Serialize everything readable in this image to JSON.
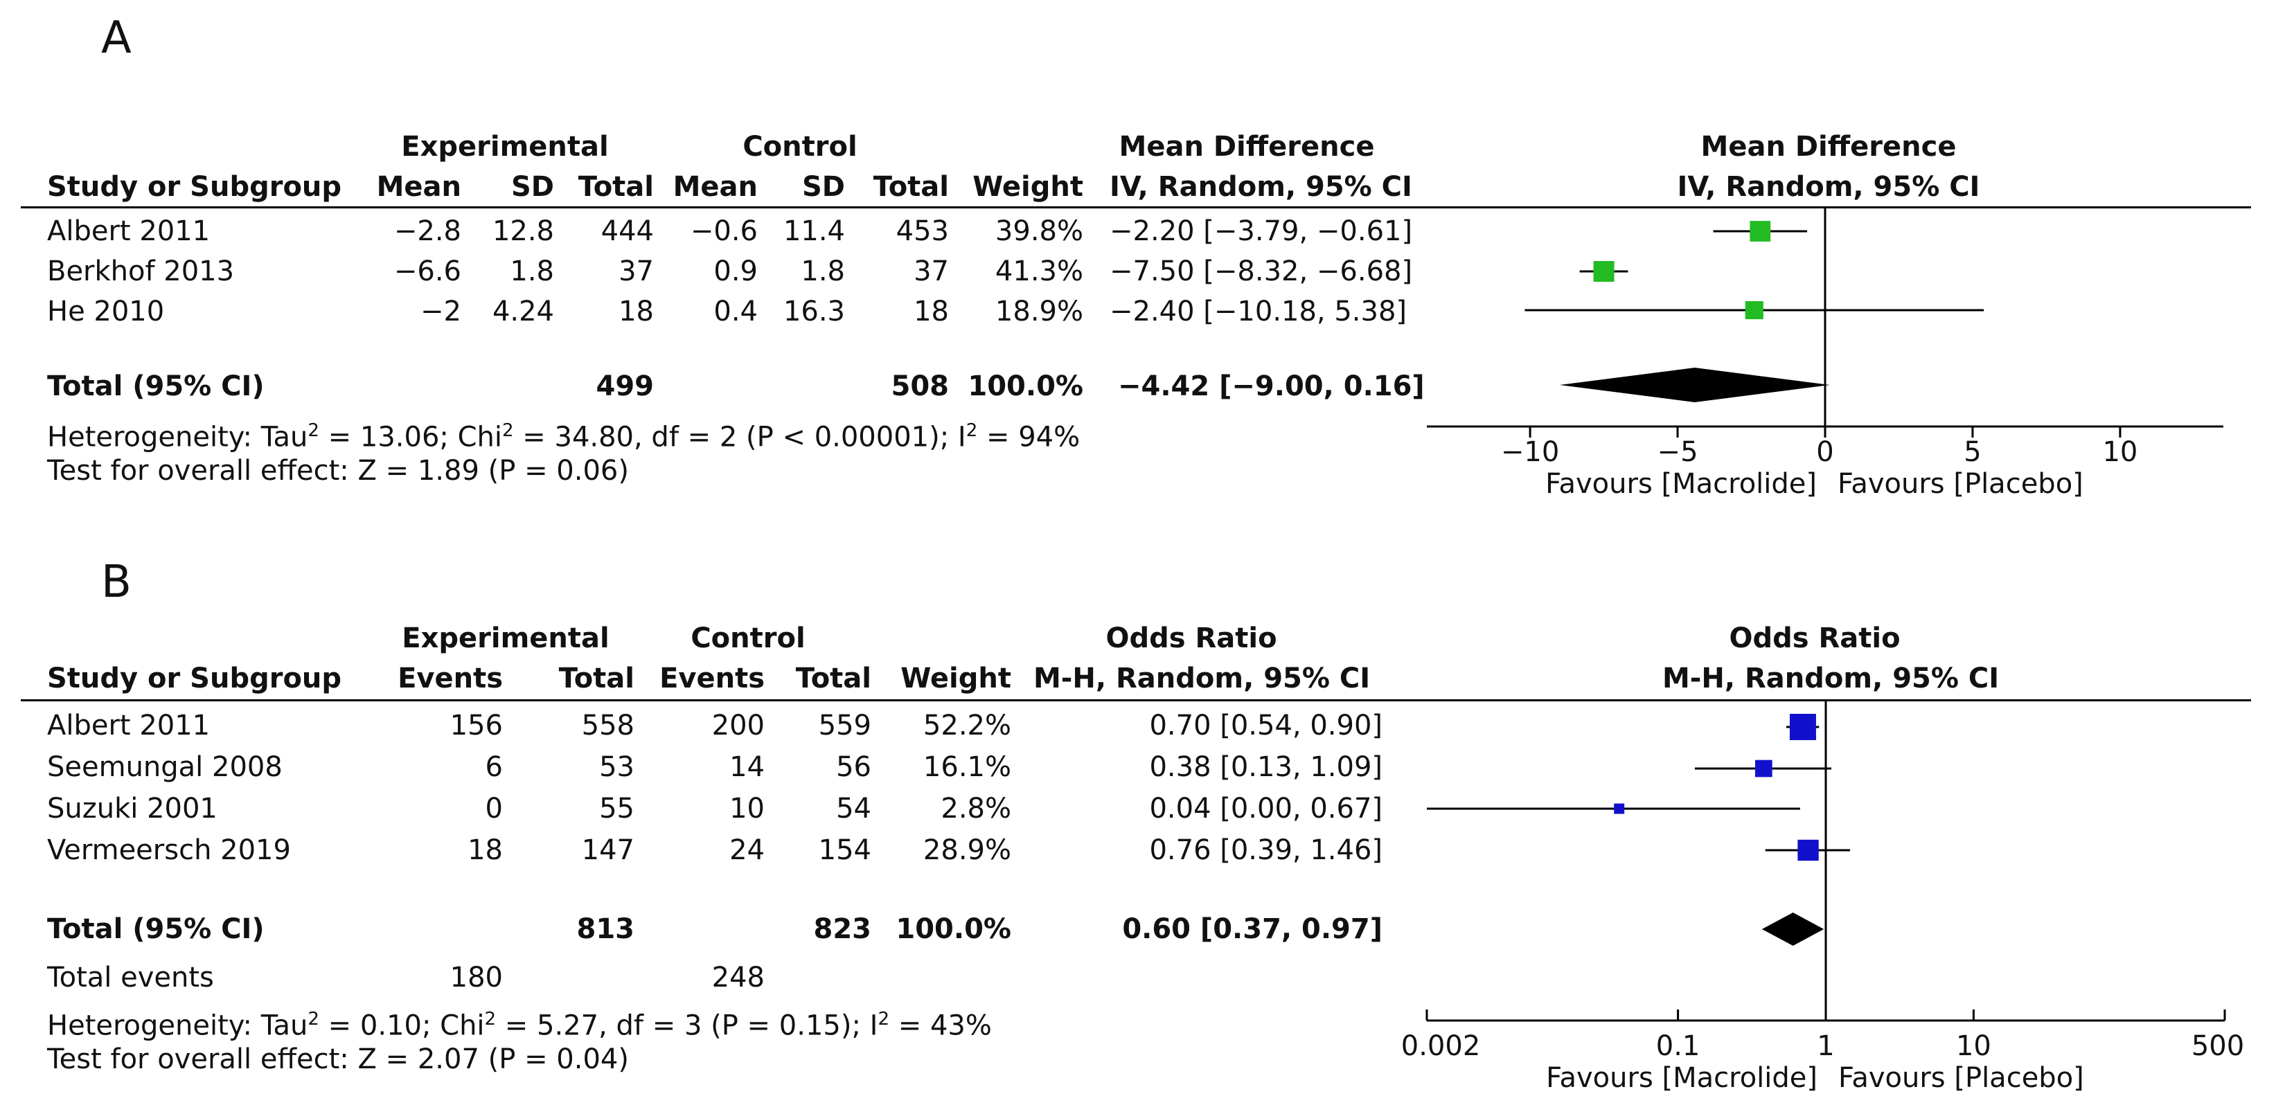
{
  "panel_a": {
    "letter": "A",
    "header": {
      "experimental": "Experimental",
      "control": "Control",
      "effect_title": "Mean Difference",
      "study": "Study or Subgroup",
      "mean": "Mean",
      "sd": "SD",
      "total": "Total",
      "weight": "Weight",
      "method": "IV, Random, 95% CI"
    },
    "rows": [
      {
        "study": "Albert 2011",
        "e_mean": "−2.8",
        "e_sd": "12.8",
        "e_total": "444",
        "c_mean": "−0.6",
        "c_sd": "11.4",
        "c_total": "453",
        "weight": "39.8%",
        "ci": "−2.20 [−3.79, −0.61]"
      },
      {
        "study": "Berkhof 2013",
        "e_mean": "−6.6",
        "e_sd": "1.8",
        "e_total": "37",
        "c_mean": "0.9",
        "c_sd": "1.8",
        "c_total": "37",
        "weight": "41.3%",
        "ci": "−7.50 [−8.32, −6.68]"
      },
      {
        "study": "He 2010",
        "e_mean": "−2",
        "e_sd": "4.24",
        "e_total": "18",
        "c_mean": "0.4",
        "c_sd": "16.3",
        "c_total": "18",
        "weight": "18.9%",
        "ci": "−2.40 [−10.18, 5.38]"
      }
    ],
    "total": {
      "label": "Total (95% CI)",
      "e_total": "499",
      "c_total": "508",
      "weight": "100.0%",
      "ci": "−4.42 [−9.00, 0.16]"
    },
    "heterogeneity": {
      "prefix": "Heterogeneity: Tau",
      "tau2": "2",
      "mid1": " = 13.06; Chi",
      "chi2": "2",
      "mid2": " = 34.80, df = 2 (P < 0.00001); I",
      "i2": "2",
      "suffix": " = 94%"
    },
    "overall_effect": "Test for overall effect: Z = 1.89 (P = 0.06)",
    "favours_left": "Favours [Macrolide]",
    "favours_right": "Favours [Placebo]"
  },
  "panel_b": {
    "letter": "B",
    "header": {
      "experimental": "Experimental",
      "control": "Control",
      "effect_title": "Odds Ratio",
      "study": "Study or Subgroup",
      "events": "Events",
      "total": "Total",
      "weight": "Weight",
      "method": "M-H, Random, 95% CI"
    },
    "rows": [
      {
        "study": "Albert 2011",
        "e_events": "156",
        "e_total": "558",
        "c_events": "200",
        "c_total": "559",
        "weight": "52.2%",
        "ci": "0.70 [0.54, 0.90]"
      },
      {
        "study": "Seemungal 2008",
        "e_events": "6",
        "e_total": "53",
        "c_events": "14",
        "c_total": "56",
        "weight": "16.1%",
        "ci": "0.38 [0.13, 1.09]"
      },
      {
        "study": "Suzuki 2001",
        "e_events": "0",
        "e_total": "55",
        "c_events": "10",
        "c_total": "54",
        "weight": "2.8%",
        "ci": "0.04 [0.00, 0.67]"
      },
      {
        "study": "Vermeersch 2019",
        "e_events": "18",
        "e_total": "147",
        "c_events": "24",
        "c_total": "154",
        "weight": "28.9%",
        "ci": "0.76 [0.39, 1.46]"
      }
    ],
    "total": {
      "label": "Total (95% CI)",
      "e_total": "813",
      "c_total": "823",
      "weight": "100.0%",
      "ci": "0.60 [0.37, 0.97]"
    },
    "total_events": {
      "label": "Total events",
      "e_events": "180",
      "c_events": "248"
    },
    "heterogeneity": {
      "prefix": "Heterogeneity: Tau",
      "tau2": "2",
      "mid1": " = 0.10; Chi",
      "chi2": "2",
      "mid2": " = 5.27, df = 3 (P = 0.15); I",
      "i2": "2",
      "suffix": " = 43%"
    },
    "overall_effect": "Test for overall effect: Z = 2.07 (P = 0.04)",
    "favours_left": "Favours [Macrolide]",
    "favours_right": "Favours [Placebo]"
  },
  "chart_data": [
    {
      "type": "forest",
      "title": "Mean Difference",
      "subtitle": "IV, Random, 95% CI",
      "scale": "linear",
      "xlim": [
        -13.5,
        13.5
      ],
      "ticks": [
        -10,
        -5,
        0,
        5,
        10
      ],
      "tick_labels": [
        "−10",
        "−5",
        "0",
        "5",
        "10"
      ],
      "null_value": 0,
      "marker_color": "#22bb22",
      "series": [
        {
          "name": "Albert 2011",
          "estimate": -2.2,
          "lower": -3.79,
          "upper": -0.61,
          "weight": 39.8
        },
        {
          "name": "Berkhof 2013",
          "estimate": -7.5,
          "lower": -8.32,
          "upper": -6.68,
          "weight": 41.3
        },
        {
          "name": "He 2010",
          "estimate": -2.4,
          "lower": -10.18,
          "upper": 5.38,
          "weight": 18.9
        }
      ],
      "pooled": {
        "estimate": -4.42,
        "lower": -9.0,
        "upper": 0.16
      },
      "xlabel_left": "Favours [Macrolide]",
      "xlabel_right": "Favours [Placebo]"
    },
    {
      "type": "forest",
      "title": "Odds Ratio",
      "subtitle": "M-H, Random, 95% CI",
      "scale": "log",
      "xlim": [
        0.002,
        500
      ],
      "ticks": [
        0.002,
        0.1,
        1,
        10,
        500
      ],
      "tick_labels": [
        "0.002",
        "0.1",
        "1",
        "10",
        "500"
      ],
      "null_value": 1,
      "marker_color": "#1111cc",
      "series": [
        {
          "name": "Albert 2011",
          "estimate": 0.7,
          "lower": 0.54,
          "upper": 0.9,
          "weight": 52.2
        },
        {
          "name": "Seemungal 2008",
          "estimate": 0.38,
          "lower": 0.13,
          "upper": 1.09,
          "weight": 16.1
        },
        {
          "name": "Suzuki 2001",
          "estimate": 0.04,
          "lower": 0.002,
          "upper": 0.67,
          "weight": 2.8
        },
        {
          "name": "Vermeersch 2019",
          "estimate": 0.76,
          "lower": 0.39,
          "upper": 1.46,
          "weight": 28.9
        }
      ],
      "pooled": {
        "estimate": 0.6,
        "lower": 0.37,
        "upper": 0.97
      },
      "xlabel_left": "Favours [Macrolide]",
      "xlabel_right": "Favours [Placebo]"
    }
  ]
}
